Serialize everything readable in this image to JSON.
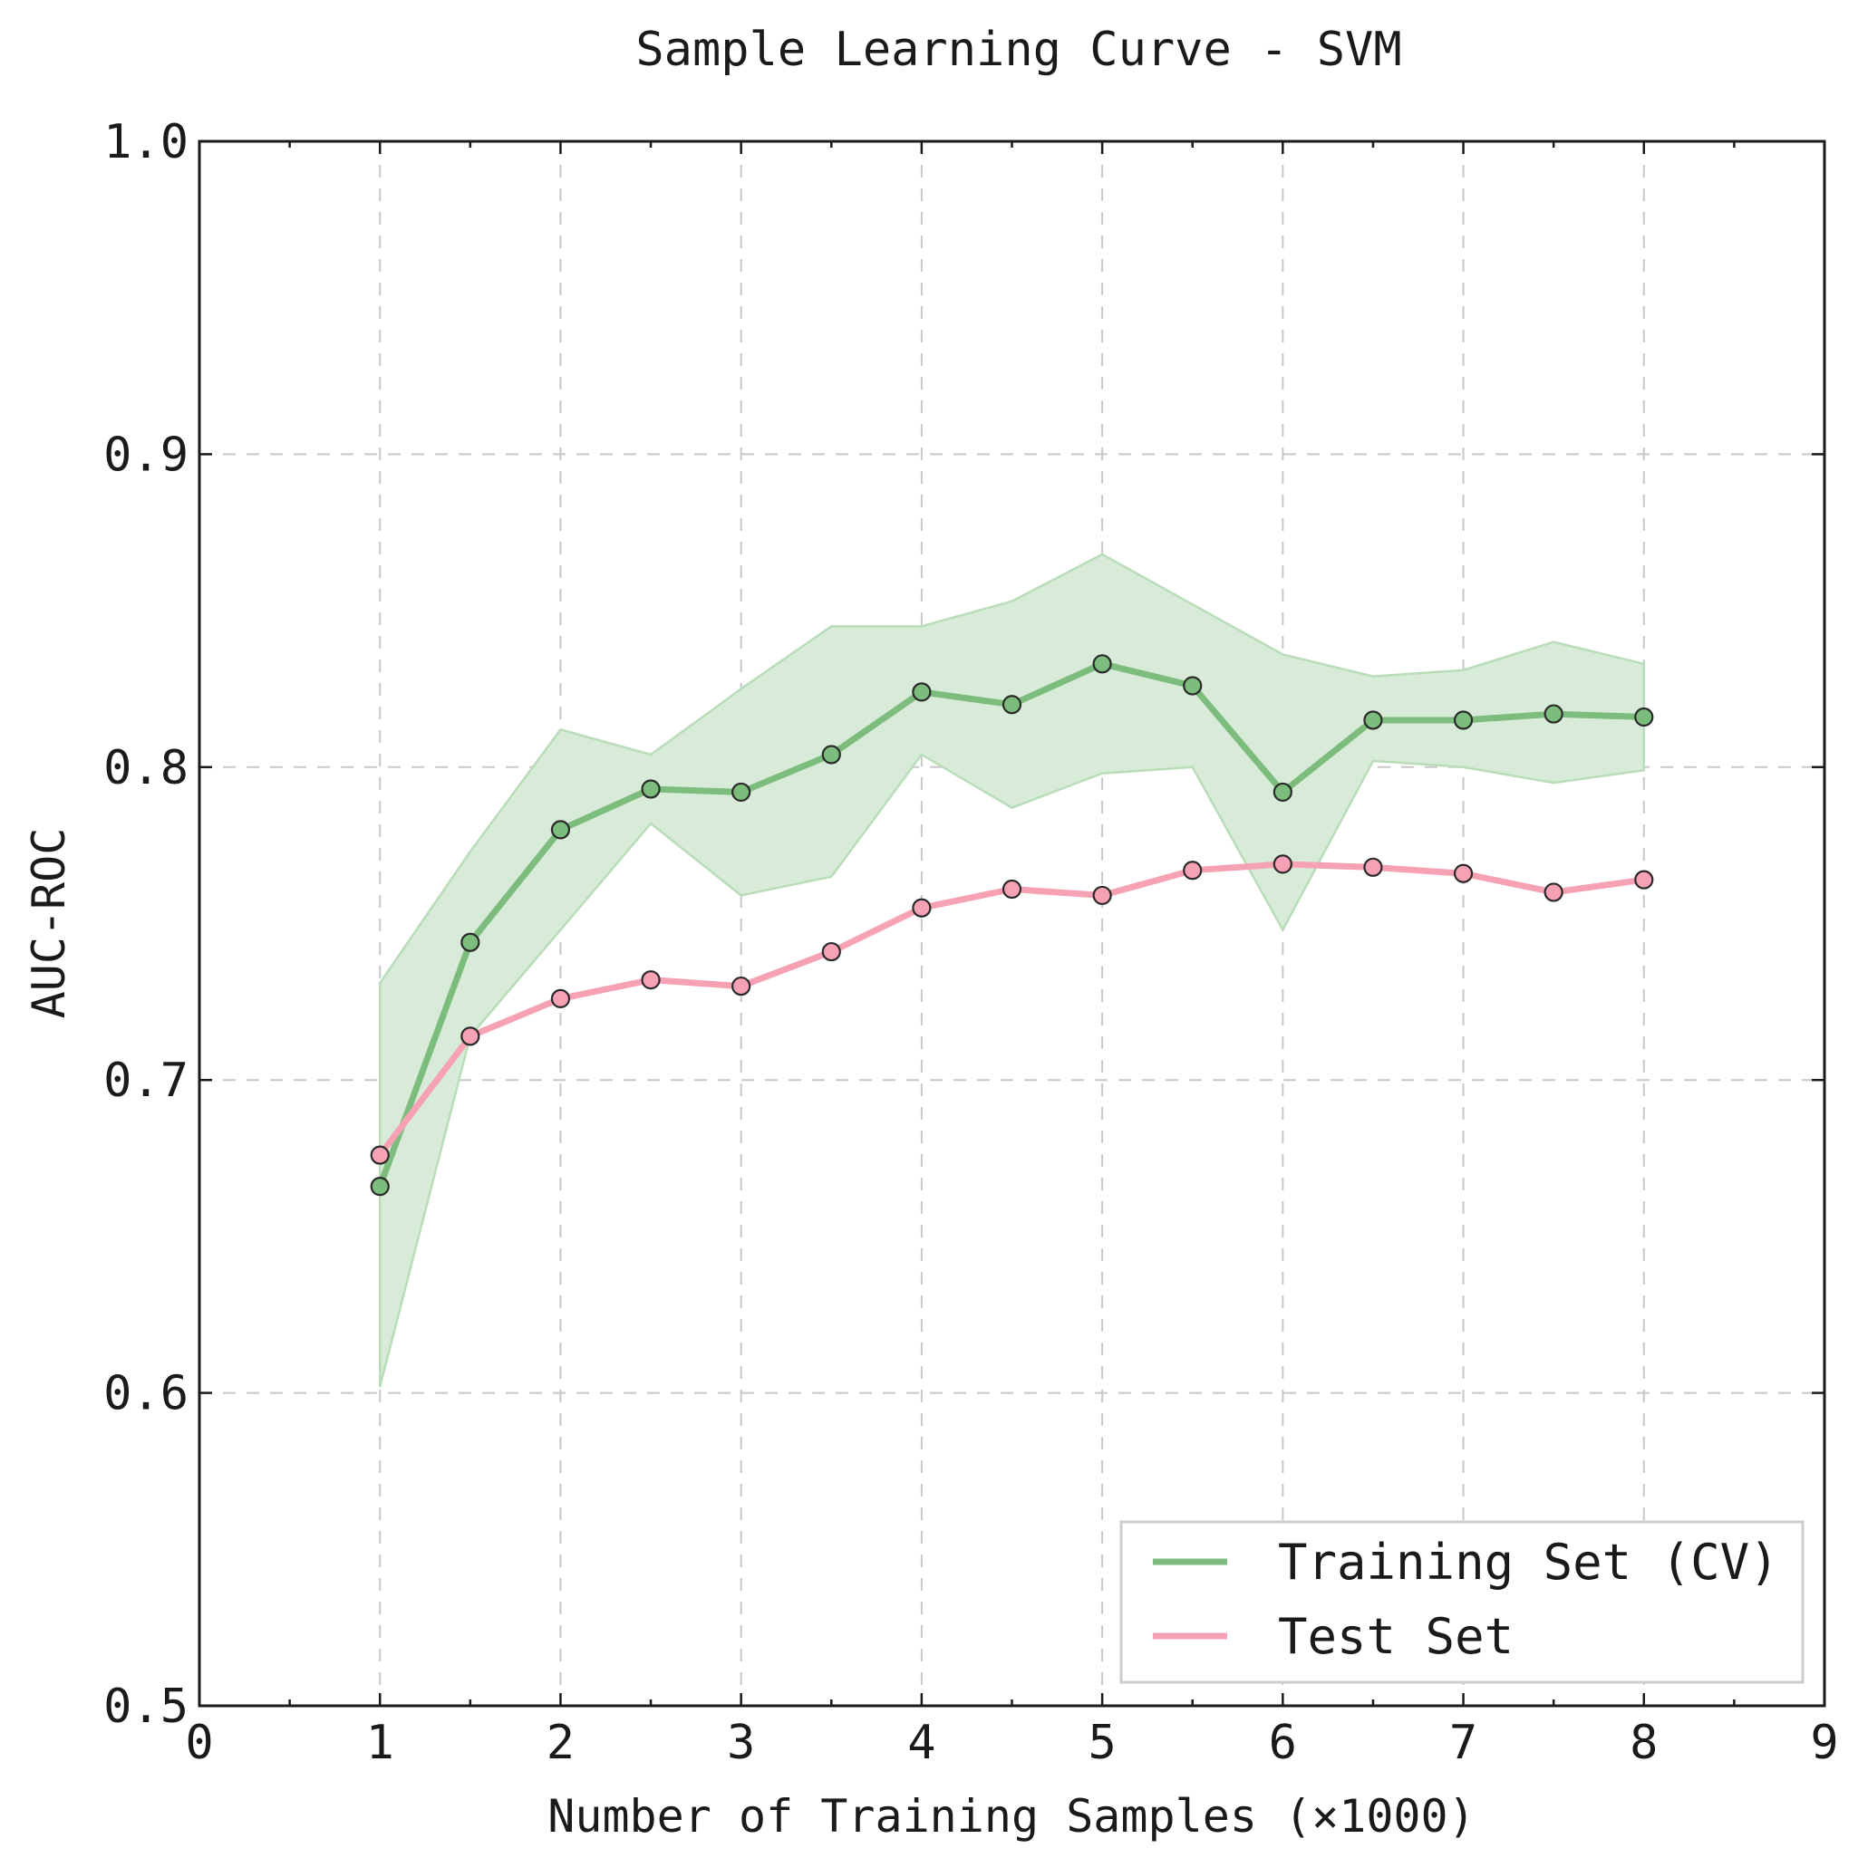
{
  "chart_data": {
    "type": "line",
    "title": "Sample Learning Curve - SVM",
    "xlabel": "Number of Training Samples (×1000)",
    "ylabel": "AUC-ROC",
    "xlim": [
      0,
      9
    ],
    "ylim": [
      0.5,
      1.0
    ],
    "xticks": [
      "0",
      "1",
      "2",
      "3",
      "4",
      "5",
      "6",
      "7",
      "8",
      "9"
    ],
    "yticks": [
      "0.5",
      "0.6",
      "0.7",
      "0.8",
      "0.9",
      "1.0"
    ],
    "grid": true,
    "legend_position": "lower-right",
    "x": [
      1.0,
      1.5,
      2.0,
      2.5,
      3.0,
      3.5,
      4.0,
      4.5,
      5.0,
      5.5,
      6.0,
      6.5,
      7.0,
      7.5,
      8.0
    ],
    "series": [
      {
        "name": "Training Set (CV)",
        "color": "#7cbc7c",
        "band_color": "#d8ebd8",
        "values": [
          0.666,
          0.744,
          0.78,
          0.793,
          0.792,
          0.804,
          0.824,
          0.82,
          0.833,
          0.826,
          0.792,
          0.815,
          0.815,
          0.817,
          0.816
        ],
        "upper": [
          0.731,
          0.773,
          0.812,
          0.804,
          0.825,
          0.845,
          0.845,
          0.853,
          0.868,
          0.852,
          0.836,
          0.829,
          0.831,
          0.84,
          0.833
        ],
        "lower": [
          0.602,
          0.714,
          0.748,
          0.782,
          0.759,
          0.765,
          0.804,
          0.787,
          0.798,
          0.8,
          0.748,
          0.802,
          0.8,
          0.795,
          0.799
        ]
      },
      {
        "name": "Test Set",
        "color": "#f7a1b4",
        "values": [
          0.676,
          0.714,
          0.726,
          0.732,
          0.73,
          0.741,
          0.755,
          0.761,
          0.759,
          0.767,
          0.769,
          0.768,
          0.766,
          0.76,
          0.764
        ]
      }
    ]
  }
}
